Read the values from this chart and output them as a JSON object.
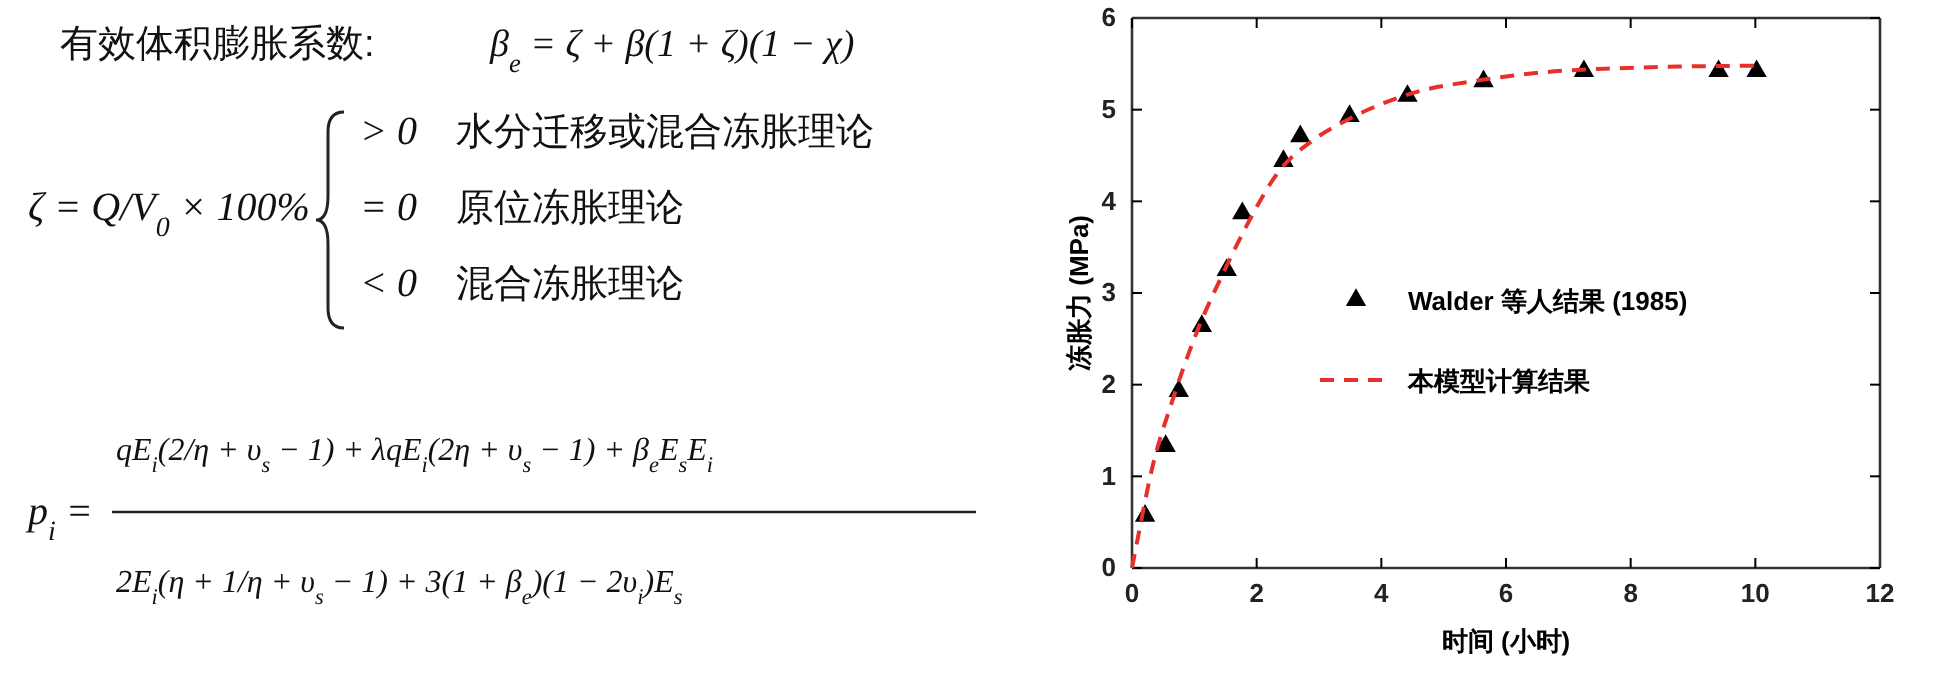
{
  "chart_data": [
    {
      "type": "other",
      "annotations": [
        "有效体积膨胀系数:",
        "β$_{e}$ = ζ + β(1 + ζ)(1 − χ)",
        "ζ = Q/V$_{0}$ × 100%",
        "> 0",
        "水分迁移或混合冻胀理论",
        "= 0",
        "原位冻胀理论",
        "< 0",
        "混合冻胀理论",
        "p$_{i}$ =",
        "qE$_{i}$(2/η + υ$_{s}$ − 1) + λqE$_{i}$(2η + υ$_{s}$ − 1) + β$_{e}$E$_{s}$E$_{i}$",
        "2E$_{i}$(η + 1/η + υ$_{s}$ − 1) + 3(1 + β$_{e}$)(1 − 2υ$_{i}$)E$_{s}$"
      ]
    },
    {
      "type": "scatter",
      "xlabel": "时间 (小时)",
      "ylabel": "冻胀力 (MPa)",
      "xlim": [
        0,
        12
      ],
      "ylim": [
        0,
        6
      ],
      "xticks": [
        0,
        2,
        4,
        6,
        8,
        10,
        12
      ],
      "yticks": [
        0,
        1,
        2,
        3,
        4,
        5,
        6
      ],
      "grid": false,
      "legend": "right",
      "series": [
        {
          "name": "Walder 等人结果 (1985)",
          "type": "scatter",
          "marker": "triangle",
          "color": "#000000",
          "x": [
            0.21,
            0.54,
            0.75,
            1.12,
            1.52,
            1.77,
            2.43,
            2.7,
            3.49,
            4.42,
            5.64,
            7.25,
            9.41,
            10.02
          ],
          "values": [
            0.57,
            1.33,
            1.93,
            2.64,
            3.25,
            3.87,
            4.44,
            4.71,
            4.93,
            5.15,
            5.31,
            5.42,
            5.42,
            5.42
          ]
        },
        {
          "name": "本模型计算结果",
          "type": "line",
          "line_style": "dashed",
          "marker": "none",
          "color": "#e8302a",
          "x": [
            0,
            0.1,
            0.32,
            0.64,
            1.02,
            1.5,
            1.82,
            2.36,
            2.89,
            3.43,
            4.5,
            5.57,
            6.64,
            7.71,
            8.79,
            10.02
          ],
          "values": [
            0,
            0.35,
            1.08,
            1.81,
            2.54,
            3.27,
            3.71,
            4.33,
            4.66,
            4.88,
            5.18,
            5.32,
            5.41,
            5.45,
            5.47,
            5.48
          ]
        }
      ]
    }
  ]
}
